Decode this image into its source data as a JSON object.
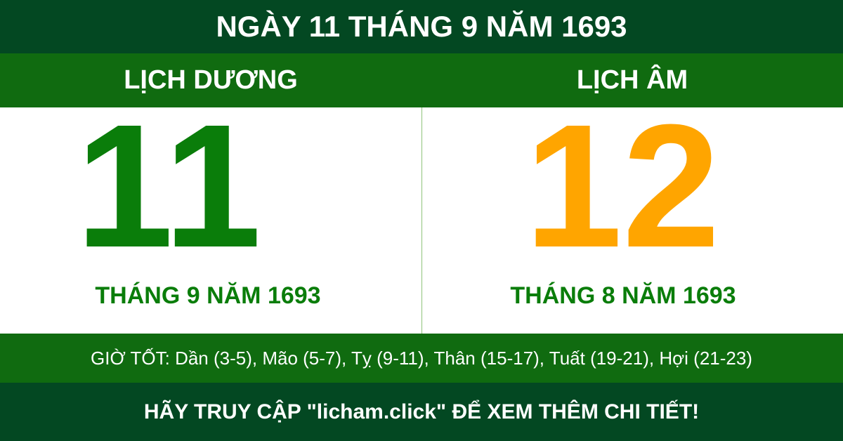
{
  "title": "NGÀY 11 THÁNG 9 NĂM 1693",
  "solar": {
    "label": "LỊCH DƯƠNG",
    "day": "11",
    "month_year": "THÁNG 9 NĂM 1693",
    "color": "#0a7d0a"
  },
  "lunar": {
    "label": "LỊCH ÂM",
    "day": "12",
    "month_year": "THÁNG 8 NĂM 1693",
    "color": "#ffa500"
  },
  "good_hours": "GIỜ TỐT: Dần (3-5), Mão (5-7), Tỵ (9-11), Thân (15-17), Tuất (19-21), Hợi (21-23)",
  "footer": "HÃY TRUY CẬP \"licham.click\" ĐỂ XEM THÊM CHI TIẾT!"
}
